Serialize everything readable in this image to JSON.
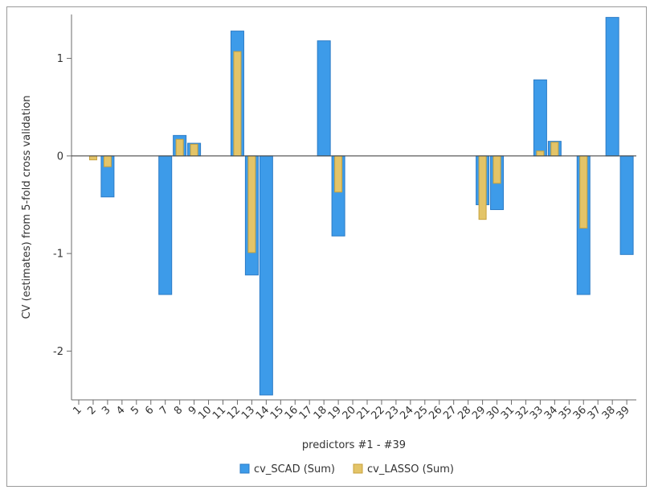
{
  "chart_data": {
    "type": "bar",
    "xlabel": "predictors #1 - #39",
    "ylabel": "CV (estimates) from 5-fold cross validation",
    "ylim": [
      -2.5,
      1.45
    ],
    "yticks": [
      -2,
      -1,
      0,
      1
    ],
    "categories": [
      "1",
      "2",
      "3",
      "4",
      "5",
      "6",
      "7",
      "8",
      "9",
      "10",
      "11",
      "12",
      "13",
      "14",
      "15",
      "16",
      "17",
      "18",
      "19",
      "20",
      "21",
      "22",
      "23",
      "24",
      "25",
      "26",
      "27",
      "28",
      "29",
      "30",
      "31",
      "32",
      "33",
      "34",
      "35",
      "36",
      "37",
      "38",
      "39"
    ],
    "series": [
      {
        "name": "cv_SCAD (Sum)",
        "color": "#3d9be9",
        "stroke": "#2b7bc6",
        "values": [
          0,
          0,
          -0.42,
          0,
          0,
          0,
          -1.42,
          0.21,
          0.13,
          0,
          0,
          1.28,
          -1.22,
          -2.45,
          0,
          0,
          0,
          1.18,
          -0.82,
          0,
          0,
          0,
          0,
          0,
          0,
          0,
          0,
          0,
          -0.5,
          -0.55,
          0,
          0,
          0.78,
          0.15,
          0,
          -1.42,
          0,
          1.42,
          -1.01
        ]
      },
      {
        "name": "cv_LASSO (Sum)",
        "color": "#e3c468",
        "stroke": "#c8a23c",
        "values": [
          0,
          -0.04,
          -0.11,
          0,
          0,
          0,
          0,
          0.17,
          0.12,
          0,
          0,
          1.07,
          -0.99,
          0,
          0,
          0,
          0,
          0,
          -0.37,
          0,
          0,
          0,
          0,
          0,
          0,
          0,
          0,
          0,
          -0.65,
          -0.28,
          0,
          0,
          0.05,
          0.14,
          0,
          -0.74,
          0,
          0,
          0
        ]
      }
    ],
    "legend_position": "bottom-center",
    "grid": false
  }
}
